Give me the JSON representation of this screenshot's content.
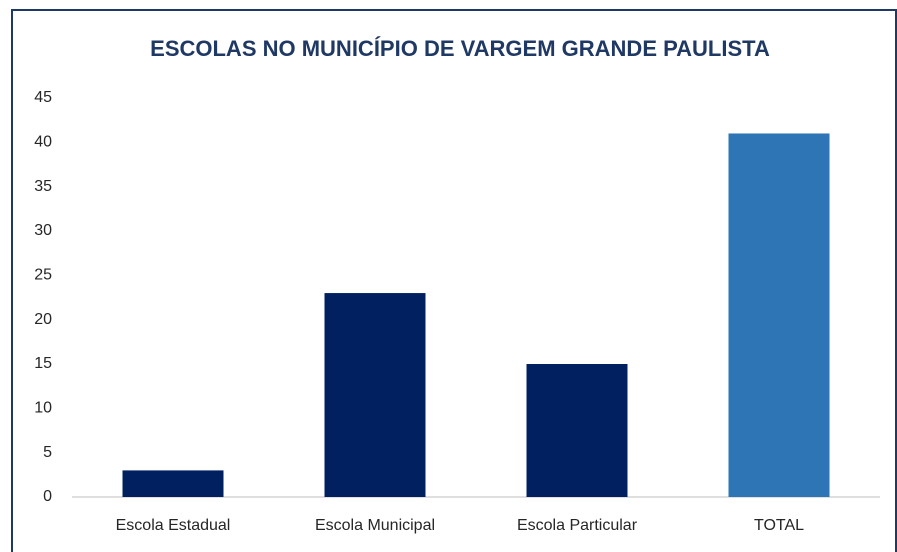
{
  "chart_data": {
    "type": "bar",
    "title": "ESCOLAS NO MUNICÍPIO DE VARGEM GRANDE PAULISTA",
    "categories": [
      "Escola Estadual",
      "Escola Municipal",
      "Escola Particular",
      "TOTAL"
    ],
    "values": [
      3,
      23,
      15,
      41
    ],
    "colors": [
      "#002060",
      "#002060",
      "#002060",
      "#2e75b6"
    ],
    "ylim": [
      0,
      45
    ],
    "yticks": [
      0,
      5,
      10,
      15,
      20,
      25,
      30,
      35,
      40,
      45
    ],
    "grid": false
  }
}
